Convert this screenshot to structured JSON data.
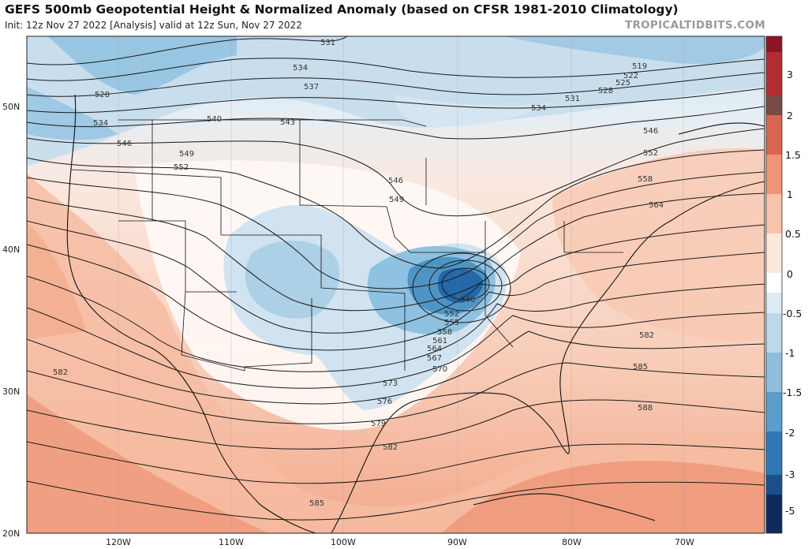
{
  "header": {
    "title": "GEFS 500mb Geopotential Height & Normalized Anomaly (based on CFSR 1981-2010 Climatology)",
    "subtitle": "Init: 12z Nov 27 2022   [Analysis]   valid at 12z Sun, Nov 27 2022",
    "site": "TROPICALTIDBITS.COM"
  },
  "map": {
    "lat_labels": [
      "50N",
      "40N",
      "30N",
      "20N"
    ],
    "lon_labels": [
      "120W",
      "110W",
      "100W",
      "90W",
      "80W",
      "70W"
    ],
    "contour_labels": [
      "519",
      "522",
      "525",
      "528",
      "531",
      "534",
      "537",
      "540",
      "543",
      "546",
      "549",
      "552",
      "555",
      "558",
      "561",
      "564",
      "567",
      "570",
      "573",
      "576",
      "579",
      "582",
      "585",
      "588"
    ],
    "low_center_value": "546"
  },
  "colorbar": {
    "tick_labels": [
      "3",
      "2",
      "1.5",
      "1",
      "0.5",
      "0",
      "-0.5",
      "-1",
      "-1.5",
      "-2",
      "-3",
      "-5"
    ],
    "colors": [
      "#8b1522",
      "#b22d33",
      "#7a4a48",
      "#d9664f",
      "#ef9476",
      "#f8c3ab",
      "#fde8dd",
      "#ffffff",
      "#deebf3",
      "#bcd8ea",
      "#8fbfdc",
      "#5b9dca",
      "#2f76b4",
      "#1a4f8c",
      "#0d2a5c"
    ]
  }
}
